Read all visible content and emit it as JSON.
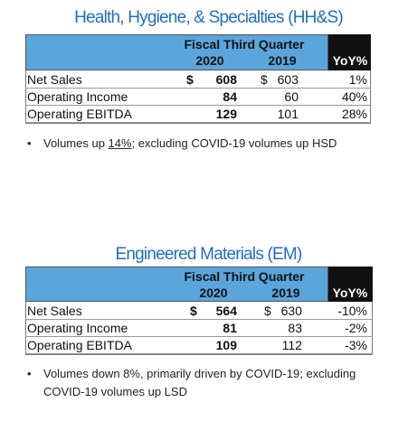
{
  "sections": [
    {
      "title": "Health, Hygiene, & Specialties (HH&S)",
      "table": {
        "group_header": "Fiscal Third Quarter",
        "columns": [
          "2020",
          "2019",
          "YoY%"
        ],
        "rows": [
          [
            "Net Sales",
            "$",
            "608",
            "$",
            "603",
            "1%"
          ],
          [
            "Operating Income",
            "",
            "84",
            "",
            "60",
            "40%"
          ],
          [
            "Operating EBITDA",
            "",
            "129",
            "",
            "101",
            "28%"
          ]
        ]
      },
      "bullet": {
        "parts": [
          "Volumes up ",
          "14%",
          "; excluding COVID-19 volumes up HSD"
        ]
      }
    },
    {
      "title": "Engineered Materials (EM)",
      "table": {
        "group_header": "Fiscal Third Quarter",
        "columns": [
          "2020",
          "2019",
          "YoY%"
        ],
        "rows": [
          [
            "Net Sales",
            "$",
            "564",
            "$",
            "630",
            "-10%"
          ],
          [
            "Operating Income",
            "",
            "81",
            "",
            "83",
            "-2%"
          ],
          [
            "Operating EBITDA",
            "",
            "109",
            "",
            "112",
            "-3%"
          ]
        ]
      },
      "bullet": {
        "parts": [
          "Volumes down 8%, primarily driven by COVID-19; excluding COVID-19 volumes up LSD"
        ]
      }
    }
  ]
}
